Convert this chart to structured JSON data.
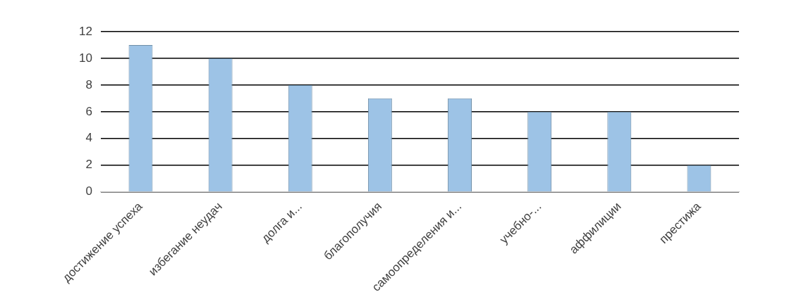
{
  "chart_data": {
    "type": "bar",
    "categories": [
      "достижение успеха",
      "избегание неудач",
      "долга и...",
      "благополучия",
      "самоопределения и...",
      "учебно-...",
      "аффилиции",
      "престижа"
    ],
    "values": [
      11,
      10,
      8,
      7,
      7,
      6,
      6,
      2
    ],
    "color": "#9dc3e6",
    "ylim": [
      0,
      12
    ],
    "yticks": [
      0,
      2,
      4,
      6,
      8,
      10,
      12
    ],
    "grid": "y"
  }
}
